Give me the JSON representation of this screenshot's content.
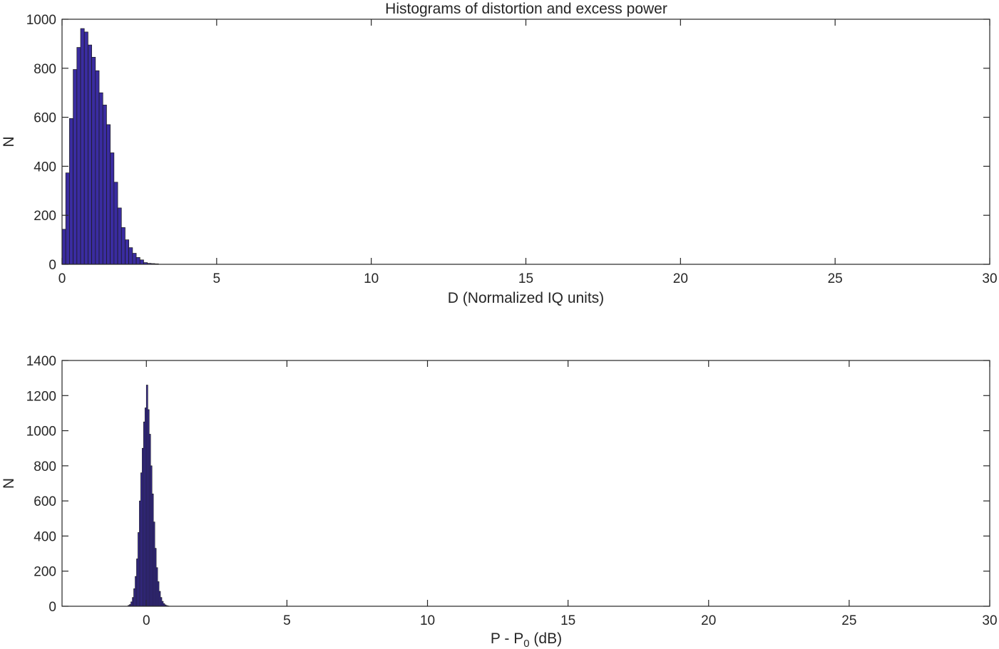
{
  "figure_title": "Histograms of distortion and excess power",
  "chart_data": [
    {
      "type": "bar",
      "title": "Histograms of distortion and excess power",
      "xlabel": "D (Normalized IQ units)",
      "ylabel": "N",
      "xlim": [
        0,
        30
      ],
      "ylim": [
        0,
        1000
      ],
      "xticks": [
        0,
        5,
        10,
        15,
        20,
        25,
        30
      ],
      "yticks": [
        0,
        200,
        400,
        600,
        800,
        1000
      ],
      "bin_width": 0.12,
      "bar_color": "#3a2ca0",
      "grid": false,
      "bins": [
        {
          "x": 0.06,
          "value": 143
        },
        {
          "x": 0.18,
          "value": 373
        },
        {
          "x": 0.3,
          "value": 595
        },
        {
          "x": 0.42,
          "value": 795
        },
        {
          "x": 0.54,
          "value": 885
        },
        {
          "x": 0.66,
          "value": 962
        },
        {
          "x": 0.78,
          "value": 948
        },
        {
          "x": 0.9,
          "value": 895
        },
        {
          "x": 1.02,
          "value": 845
        },
        {
          "x": 1.14,
          "value": 790
        },
        {
          "x": 1.26,
          "value": 700
        },
        {
          "x": 1.38,
          "value": 650
        },
        {
          "x": 1.5,
          "value": 570
        },
        {
          "x": 1.62,
          "value": 455
        },
        {
          "x": 1.74,
          "value": 335
        },
        {
          "x": 1.86,
          "value": 230
        },
        {
          "x": 1.98,
          "value": 150
        },
        {
          "x": 2.1,
          "value": 100
        },
        {
          "x": 2.22,
          "value": 68
        },
        {
          "x": 2.34,
          "value": 45
        },
        {
          "x": 2.46,
          "value": 28
        },
        {
          "x": 2.58,
          "value": 18
        },
        {
          "x": 2.7,
          "value": 7
        },
        {
          "x": 2.82,
          "value": 4
        },
        {
          "x": 2.94,
          "value": 3
        },
        {
          "x": 3.06,
          "value": 2
        }
      ]
    },
    {
      "type": "bar",
      "title": "",
      "xlabel_parts": {
        "main": "P  -  P",
        "subscript": "0",
        "suffix": "  (dB)"
      },
      "ylabel": "N",
      "xlim": [
        -3,
        30
      ],
      "ylim": [
        0,
        1400
      ],
      "xticks": [
        0,
        5,
        10,
        15,
        20,
        25,
        30
      ],
      "yticks": [
        0,
        200,
        400,
        600,
        800,
        1000,
        1200,
        1400
      ],
      "bin_width": 0.05,
      "bar_color": "#3a2ca0",
      "grid": false,
      "bins": [
        {
          "x": -0.625,
          "value": 5
        },
        {
          "x": -0.575,
          "value": 10
        },
        {
          "x": -0.525,
          "value": 25
        },
        {
          "x": -0.475,
          "value": 50
        },
        {
          "x": -0.425,
          "value": 100
        },
        {
          "x": -0.375,
          "value": 170
        },
        {
          "x": -0.325,
          "value": 270
        },
        {
          "x": -0.275,
          "value": 420
        },
        {
          "x": -0.225,
          "value": 600
        },
        {
          "x": -0.175,
          "value": 760
        },
        {
          "x": -0.125,
          "value": 900
        },
        {
          "x": -0.075,
          "value": 1050
        },
        {
          "x": -0.025,
          "value": 1130
        },
        {
          "x": 0.025,
          "value": 1260
        },
        {
          "x": 0.075,
          "value": 1120
        },
        {
          "x": 0.125,
          "value": 980
        },
        {
          "x": 0.175,
          "value": 800
        },
        {
          "x": 0.225,
          "value": 640
        },
        {
          "x": 0.275,
          "value": 480
        },
        {
          "x": 0.325,
          "value": 330
        },
        {
          "x": 0.375,
          "value": 220
        },
        {
          "x": 0.425,
          "value": 140
        },
        {
          "x": 0.475,
          "value": 85
        },
        {
          "x": 0.525,
          "value": 50
        },
        {
          "x": 0.575,
          "value": 28
        },
        {
          "x": 0.625,
          "value": 15
        },
        {
          "x": 0.675,
          "value": 8
        },
        {
          "x": 0.725,
          "value": 4
        },
        {
          "x": 0.775,
          "value": 2
        }
      ]
    }
  ]
}
